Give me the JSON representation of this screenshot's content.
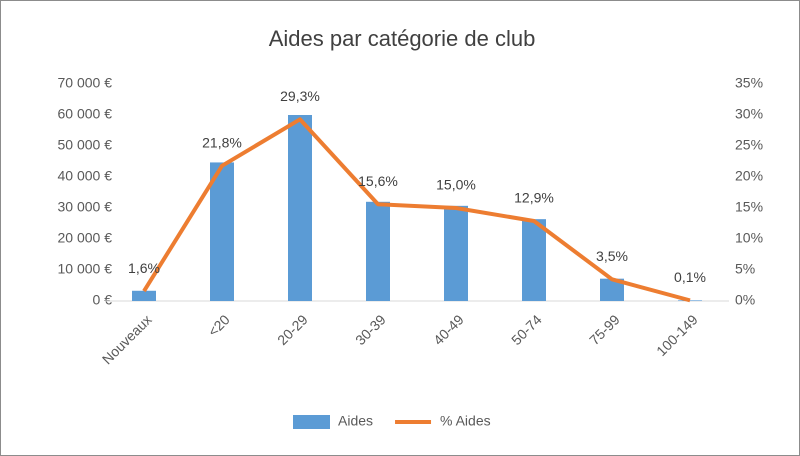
{
  "chart_data": {
    "type": "bar",
    "title": "Aides par catégorie de club",
    "categories": [
      "Nouveaux",
      "<20",
      "20-29",
      "30-39",
      "40-49",
      "50-74",
      "75-99",
      "100-149"
    ],
    "series": [
      {
        "name": "Aides",
        "type": "bar",
        "color": "#5b9bd5",
        "axis": "y",
        "values": [
          3300,
          44700,
          60000,
          32000,
          30700,
          26400,
          7200,
          200
        ]
      },
      {
        "name": "% Aides",
        "type": "line",
        "color": "#ed7d31",
        "axis": "y2",
        "values": [
          1.6,
          21.8,
          29.3,
          15.6,
          15.0,
          12.9,
          3.5,
          0.1
        ],
        "value_labels": [
          "1,6%",
          "21,8%",
          "29,3%",
          "15,6%",
          "15,0%",
          "12,9%",
          "3,5%",
          "0,1%"
        ]
      }
    ],
    "ylim": [
      0,
      70000
    ],
    "yticks": [
      {
        "value": 0,
        "label": "0 €"
      },
      {
        "value": 10000,
        "label": "10 000 €"
      },
      {
        "value": 20000,
        "label": "20 000 €"
      },
      {
        "value": 30000,
        "label": "30 000 €"
      },
      {
        "value": 40000,
        "label": "40 000 €"
      },
      {
        "value": 50000,
        "label": "50 000 €"
      },
      {
        "value": 60000,
        "label": "60 000 €"
      },
      {
        "value": 70000,
        "label": "70 000 €"
      }
    ],
    "y2lim": [
      0,
      35
    ],
    "y2ticks": [
      {
        "value": 0,
        "label": "0%"
      },
      {
        "value": 5,
        "label": "5%"
      },
      {
        "value": 10,
        "label": "10%"
      },
      {
        "value": 15,
        "label": "15%"
      },
      {
        "value": 20,
        "label": "20%"
      },
      {
        "value": 25,
        "label": "25%"
      },
      {
        "value": 30,
        "label": "30%"
      },
      {
        "value": 35,
        "label": "35%"
      }
    ],
    "grid": false,
    "legend": "bottom"
  }
}
